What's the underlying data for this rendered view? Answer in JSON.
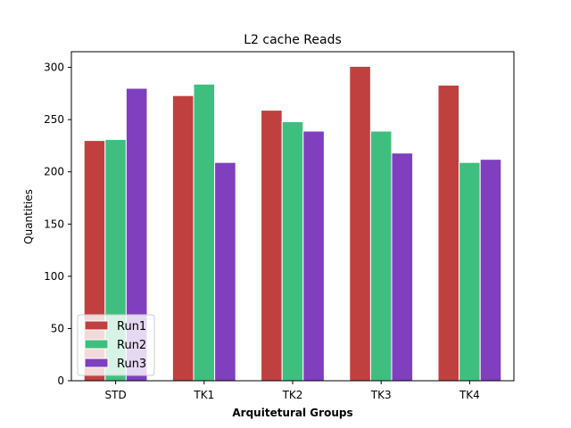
{
  "chart_data": {
    "type": "bar",
    "title": "L2 cache Reads",
    "xlabel": "Arquitetural Groups",
    "ylabel": "Quantities",
    "categories": [
      "STD",
      "TK1",
      "TK2",
      "TK3",
      "TK4"
    ],
    "series": [
      {
        "name": "Run1",
        "color": "#c04040",
        "values": [
          230,
          273,
          259,
          301,
          283
        ]
      },
      {
        "name": "Run2",
        "color": "#3fbf7f",
        "values": [
          231,
          284,
          248,
          239,
          209
        ]
      },
      {
        "name": "Run3",
        "color": "#7f3fbf",
        "values": [
          280,
          209,
          239,
          218,
          212
        ]
      }
    ],
    "ylim": [
      0,
      315
    ],
    "yticks": [
      0,
      50,
      100,
      150,
      200,
      250,
      300
    ],
    "grid": false,
    "legend_position": "lower-left"
  }
}
